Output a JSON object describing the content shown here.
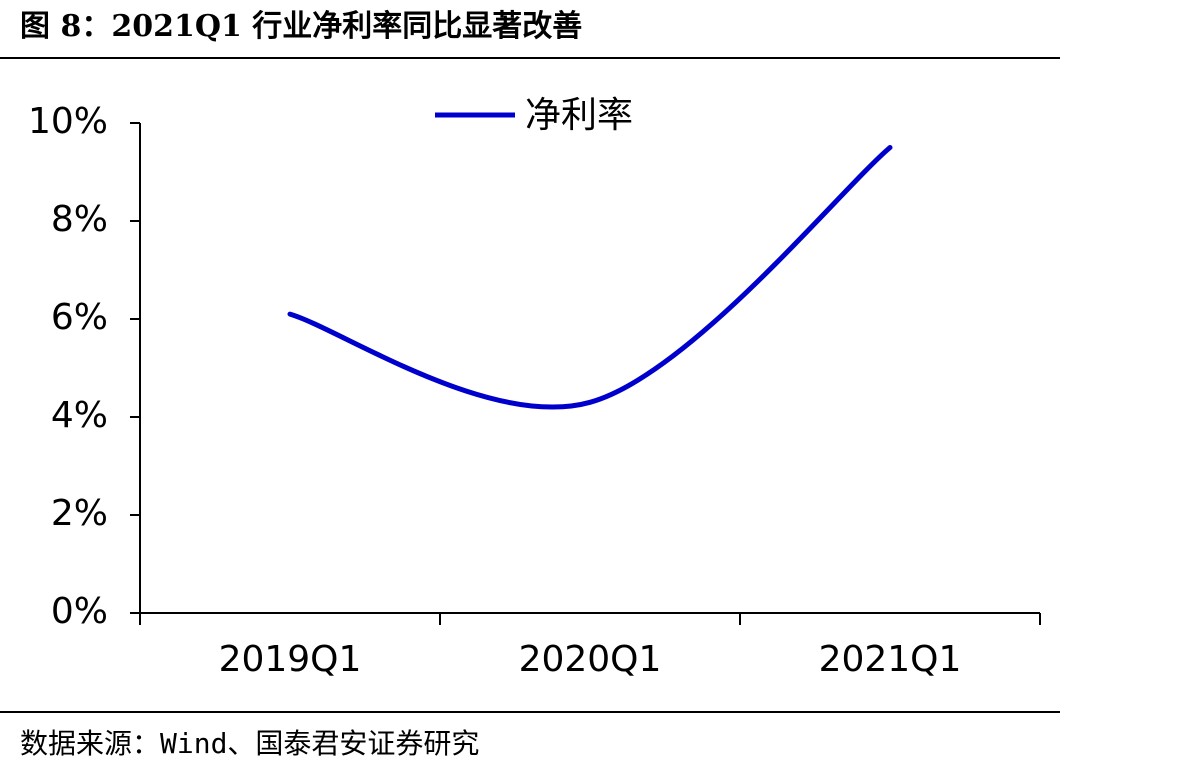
{
  "chart_data": {
    "type": "line",
    "title": "图 8：2021Q1 行业净利率同比显著改善",
    "source": "数据来源：Wind、国泰君安证券研究",
    "categories": [
      "2019Q1",
      "2020Q1",
      "2021Q1"
    ],
    "series": [
      {
        "name": "净利率",
        "color": "#0000cc",
        "values": [
          6.1,
          4.3,
          9.5
        ]
      }
    ],
    "ylim": [
      0,
      10
    ],
    "yticks": [
      {
        "value": 0,
        "label": "0%"
      },
      {
        "value": 2,
        "label": "2%"
      },
      {
        "value": 4,
        "label": "4%"
      },
      {
        "value": 6,
        "label": "6%"
      },
      {
        "value": 8,
        "label": "8%"
      },
      {
        "value": 10,
        "label": "10%"
      }
    ],
    "smooth": true,
    "legend": "top"
  }
}
